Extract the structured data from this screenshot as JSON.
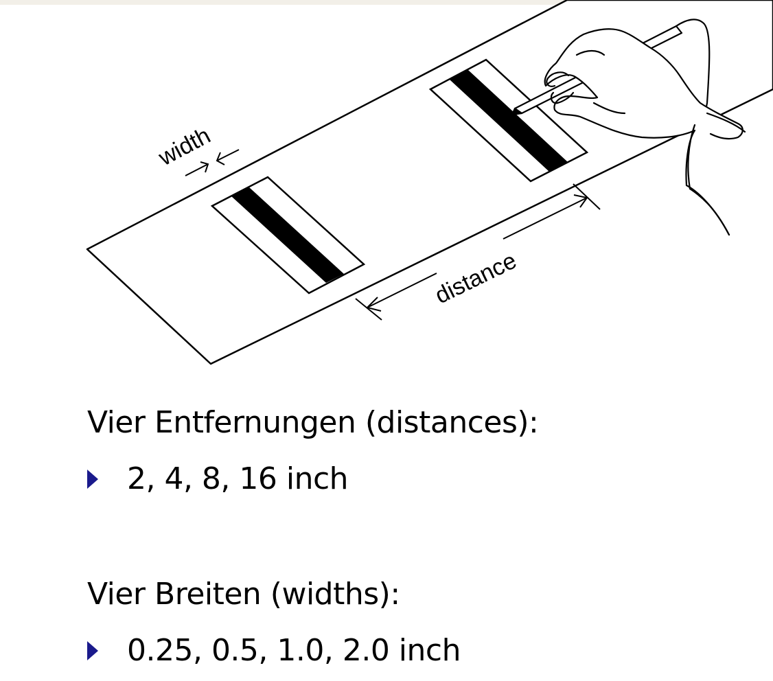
{
  "diagram": {
    "width_label": "width",
    "distance_label": "distance"
  },
  "section_distances": {
    "heading": "Vier Entfernungen (distances):",
    "bullet": "2, 4, 8, 16 inch"
  },
  "section_widths": {
    "heading": "Vier Breiten (widths):",
    "bullet": "0.25, 0.5, 1.0, 2.0 inch"
  },
  "colors": {
    "bullet": "#1a1a8c",
    "top_strip": "#f2efe8"
  }
}
